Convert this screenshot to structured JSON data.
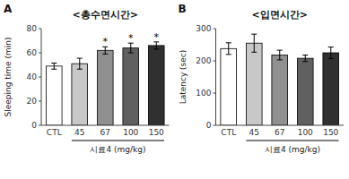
{
  "chart_data": [
    {
      "type": "bar",
      "label": "A",
      "title": "<총수면시간>",
      "categories": [
        "CTL",
        "45",
        "67",
        "100",
        "150"
      ],
      "values": [
        49,
        51,
        62,
        64,
        66
      ],
      "errors": [
        2.5,
        4.5,
        3.0,
        4.0,
        3.0
      ],
      "colors": [
        "#ffffff",
        "#c8c8c8",
        "#909090",
        "#606060",
        "#303030"
      ],
      "ylabel": "Sleeping time (min)",
      "xlabel": "시료4 (mg/kg)",
      "ylim": [
        0,
        80
      ],
      "yticks": [
        0,
        20,
        40,
        60,
        80
      ],
      "annotations": [
        null,
        null,
        "*",
        "*",
        "*"
      ],
      "grid": false
    },
    {
      "type": "bar",
      "label": "B",
      "title": "<입면시간>",
      "categories": [
        "CTL",
        "45",
        "67",
        "100",
        "150"
      ],
      "values": [
        238,
        255,
        218,
        208,
        225
      ],
      "errors": [
        18,
        28,
        15,
        10,
        18
      ],
      "colors": [
        "#ffffff",
        "#c8c8c8",
        "#909090",
        "#606060",
        "#303030"
      ],
      "ylabel": "Latency (sec)",
      "xlabel": "시료4 (mg/kg)",
      "ylim": [
        0,
        300
      ],
      "yticks": [
        0,
        100,
        200,
        300
      ],
      "grid": false
    }
  ]
}
